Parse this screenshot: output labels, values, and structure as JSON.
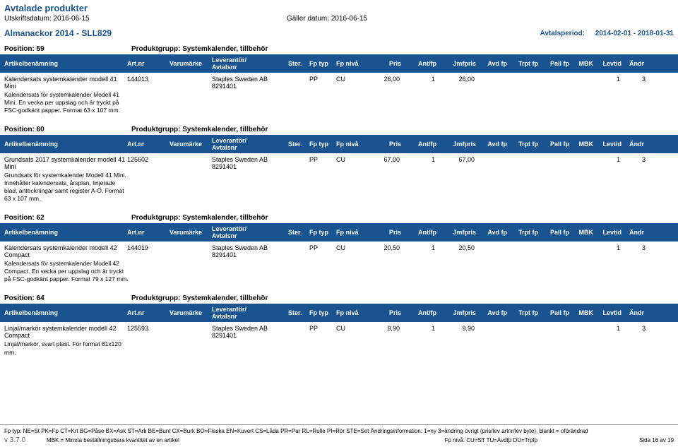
{
  "page": {
    "title": "Avtalade produkter",
    "print_date_label": "Utskriftsdatum:",
    "print_date": "2016-06-15",
    "valid_date_label": "Gäller datum:",
    "valid_date": "2016-06-15"
  },
  "section": {
    "title": "Almanackor 2014 - SLL829",
    "period_label": "Avtalsperiod:",
    "period": "2014-02-01 - 2018-01-31"
  },
  "columns": {
    "name": "Artikelbenämning",
    "artnr": "Art.nr",
    "varumarke": "Varumärke",
    "lev": "Leverantör/",
    "avtalsnr": "Avtalsnr",
    "ster": "Ster.",
    "fptyp": "Fp typ",
    "fpniva": "Fp nivå",
    "pris": "Pris",
    "antfp": "Ant/fp",
    "jmfpris": "Jmfpris",
    "avdfp": "Avd fp",
    "trptfp": "Trpt fp",
    "pallfp": "Pall fp",
    "mbk": "MBK",
    "levtid": "Levtid",
    "andr": "Ändr"
  },
  "positions": [
    {
      "pos_label": "Position: 59",
      "group_label": "Produktgrupp: Systemkalender, tillbehör",
      "row": {
        "name": "Kalendersats systemkalender modell 41 Mini",
        "desc": "Kalendersats för systemkalender Modell 41 Mini. En vecka per uppslag och är tryckt på FSC-godkänt papper. Format 63 x 107 mm.",
        "artnr": "144013",
        "varumarke": "",
        "lev": "Staples Sweden AB",
        "avtalsnr": "8291401",
        "ster": "",
        "fptyp": "PP",
        "fpniva": "CU",
        "pris": "26,00",
        "antfp": "1",
        "jmfpris": "26,00",
        "avdfp": "",
        "trptfp": "",
        "pallfp": "",
        "mbk": "",
        "levtid": "1",
        "andr": "3"
      }
    },
    {
      "pos_label": "Position: 60",
      "group_label": "Produktgrupp: Systemkalender, tillbehör",
      "row": {
        "name": "Grundsats 2017 systemkalender modell 41 Mini",
        "desc": "Grundsats för systemkalender Modell 41 Mini. Innehåller kalendersats, årsplan, linjerade blad, anteckningar samt register A-Ö. Format 63 x 107 mm.",
        "artnr": "125602",
        "varumarke": "",
        "lev": "Staples Sweden AB",
        "avtalsnr": "8291401",
        "ster": "",
        "fptyp": "PP",
        "fpniva": "CU",
        "pris": "67,00",
        "antfp": "1",
        "jmfpris": "67,00",
        "avdfp": "",
        "trptfp": "",
        "pallfp": "",
        "mbk": "",
        "levtid": "1",
        "andr": "3"
      }
    },
    {
      "pos_label": "Position: 62",
      "group_label": "Produktgrupp: Systemkalender, tillbehör",
      "row": {
        "name": "Kalendersats systemkalender modell 42 Compact",
        "desc": "Kalendersats för systemkalender Modell 42 Compact. En vecka per uppslag och är tryckt på FSC-godkänt papper. Format 79 x 127 mm.",
        "artnr": "144019",
        "varumarke": "",
        "lev": "Staples Sweden AB",
        "avtalsnr": "8291401",
        "ster": "",
        "fptyp": "PP",
        "fpniva": "CU",
        "pris": "20,50",
        "antfp": "1",
        "jmfpris": "20,50",
        "avdfp": "",
        "trptfp": "",
        "pallfp": "",
        "mbk": "",
        "levtid": "1",
        "andr": "3"
      }
    },
    {
      "pos_label": "Position: 64",
      "group_label": "Produktgrupp: Systemkalender, tillbehör",
      "row": {
        "name": "Linjal/markör systemkalender modell 42 Compact",
        "desc": "Linjal/markör, svart plast. För format 81x120 mm.",
        "artnr": "125593",
        "varumarke": "",
        "lev": "Staples Sweden AB",
        "avtalsnr": "8291401",
        "ster": "",
        "fptyp": "PP",
        "fpniva": "CU",
        "pris": "9,90",
        "antfp": "1",
        "jmfpris": "9,90",
        "avdfp": "",
        "trptfp": "",
        "pallfp": "",
        "mbk": "",
        "levtid": "1",
        "andr": "3"
      }
    }
  ],
  "footer": {
    "line1": "Fp typ: NE=St PK=Fp CT=Krt BG=Påse BX=Ask ST=Ark BE=Bunt CX=Burk BO=Flaska EN=Kuvert CS=Låda PR=Par RL=Rulle PI=Rör STE=Set Ändringsinformation: 1=ny 3=ändring övrigt (pris/lev artnr/lev byte), blankt = oförändrad",
    "version": "v 3.7.0",
    "mbk": "MBK = Minsta beställningsbara kvantitet av en artikel",
    "fpniva": "Fp nivå: CU=ST TU=Avdfp DU=Trpfp",
    "sida": "Sida 16 av 19"
  }
}
